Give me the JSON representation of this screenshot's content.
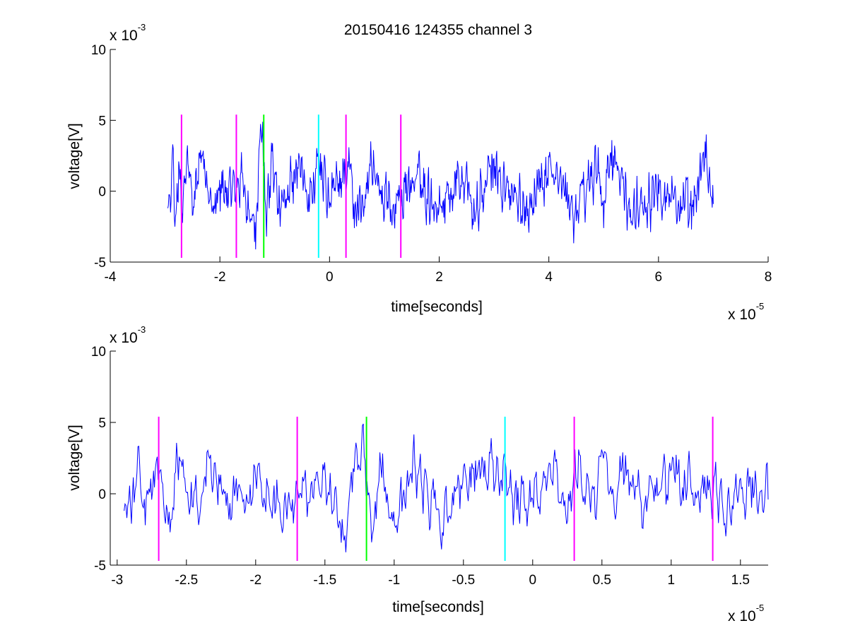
{
  "figure": {
    "title": "20150416 124355 channel 3"
  },
  "chart_data": [
    {
      "type": "line",
      "title": "20150416 124355 channel 3",
      "xlabel": "time[seconds]",
      "ylabel": "voltage[V]",
      "x_multiplier": {
        "base": "x 10",
        "exponent": "-5"
      },
      "y_multiplier": {
        "base": "x 10",
        "exponent": "-3"
      },
      "xlim": [
        -4e-05,
        8e-05
      ],
      "ylim": [
        -0.005,
        0.01
      ],
      "xticks": [
        "-4",
        "-2",
        "0",
        "2",
        "4",
        "6",
        "8"
      ],
      "xtick_values": [
        -4e-05,
        -2e-05,
        0,
        2e-05,
        4e-05,
        6e-05,
        8e-05
      ],
      "yticks": [
        "-5",
        "0",
        "5",
        "10"
      ],
      "ytick_values": [
        -0.005,
        0,
        0.005,
        0.01
      ],
      "grid": false,
      "series": [
        {
          "signal_range": [
            -2.95e-05,
            7e-05
          ],
          "sample_count": 1000,
          "color": "#0000ff",
          "points": [
            [
              -2.95e-05,
              -0.0012
            ],
            [
              -2.9e-05,
              -0.0015
            ],
            [
              -2.86e-05,
              0.0033
            ],
            [
              -2.82e-05,
              -0.0025
            ],
            [
              -2.75e-05,
              0.0021
            ],
            [
              -2.7e-05,
              -0.0028
            ],
            [
              -2.6e-05,
              0.0027
            ],
            [
              -2.5e-05,
              -0.0017
            ],
            [
              -2.35e-05,
              0.0029
            ],
            [
              -2.2e-05,
              -0.0009
            ],
            [
              -2e-05,
              0.0008
            ],
            [
              -1.8e-05,
              -0.0011
            ],
            [
              -1.6e-05,
              0.0013
            ],
            [
              -1.45e-05,
              -0.0022
            ],
            [
              -1.35e-05,
              -0.0041
            ],
            [
              -1.28e-05,
              0.0033
            ],
            [
              -1.22e-05,
              0.0049
            ],
            [
              -1.15e-05,
              -0.0032
            ],
            [
              -1.05e-05,
              0.0028
            ],
            [
              -9e-06,
              -0.0025
            ],
            [
              -6e-06,
              0.0019
            ],
            [
              -3e-06,
              -0.0008
            ],
            [
              -2e-06,
              0.0024
            ],
            [
              0.0,
              -0.0012
            ],
            [
              3.5e-06,
              0.0031
            ],
            [
              4.5e-06,
              -0.0026
            ],
            [
              8e-06,
              0.0029
            ],
            [
              1e-05,
              -0.0018
            ],
            [
              1.6e-05,
              0.0012
            ],
            [
              2e-05,
              -0.0013
            ],
            [
              2.5e-05,
              0.0021
            ],
            [
              2.6e-05,
              -0.0027
            ],
            [
              3e-05,
              0.0023
            ],
            [
              3.5e-05,
              -0.0021
            ],
            [
              4e-05,
              0.0025
            ],
            [
              4.5e-05,
              -0.0021
            ],
            [
              4.9e-05,
              0.0031
            ],
            [
              5e-05,
              -0.0026
            ],
            [
              5.15e-05,
              0.0036
            ],
            [
              5.5e-05,
              -0.0022
            ],
            [
              6e-05,
              0.0012
            ],
            [
              6.6e-05,
              -0.0027
            ],
            [
              6.85e-05,
              0.0035
            ],
            [
              7e-05,
              -0.0009
            ]
          ]
        }
      ],
      "markers": [
        {
          "x": -2.7e-05,
          "color": "#ff00ff",
          "ylim": [
            -0.0047,
            0.0054
          ]
        },
        {
          "x": -1.7e-05,
          "color": "#ff00ff",
          "ylim": [
            -0.0047,
            0.0054
          ]
        },
        {
          "x": -1.2e-05,
          "color": "#00ff00",
          "ylim": [
            -0.0047,
            0.0054
          ]
        },
        {
          "x": -2e-06,
          "color": "#00ffff",
          "ylim": [
            -0.0047,
            0.0054
          ]
        },
        {
          "x": 3e-06,
          "color": "#ff00ff",
          "ylim": [
            -0.0047,
            0.0054
          ]
        },
        {
          "x": 1.3e-05,
          "color": "#ff00ff",
          "ylim": [
            -0.0047,
            0.0054
          ]
        }
      ]
    },
    {
      "type": "line",
      "title": "",
      "xlabel": "time[seconds]",
      "ylabel": "voltage[V]",
      "x_multiplier": {
        "base": "x 10",
        "exponent": "-5"
      },
      "y_multiplier": {
        "base": "x 10",
        "exponent": "-3"
      },
      "xlim": [
        -3.05e-05,
        1.7e-05
      ],
      "ylim": [
        -0.005,
        0.01
      ],
      "xticks": [
        "-3",
        "-2.5",
        "-2",
        "-1.5",
        "-1",
        "-0.5",
        "0",
        "0.5",
        "1",
        "1.5"
      ],
      "xtick_values": [
        -3e-05,
        -2.5e-05,
        -2e-05,
        -1.5e-05,
        -1e-05,
        -5e-06,
        0,
        5e-06,
        1e-05,
        1.5e-05
      ],
      "yticks": [
        "-5",
        "0",
        "5",
        "10"
      ],
      "ytick_values": [
        -0.005,
        0,
        0.005,
        0.01
      ],
      "grid": false,
      "series": [
        {
          "signal_range": [
            -2.95e-05,
            1.7e-05
          ],
          "sample_count": 700,
          "color": "#0000ff",
          "points": [
            [
              -2.95e-05,
              -0.0012
            ],
            [
              -2.9e-05,
              -0.0021
            ],
            [
              -2.85e-05,
              0.0033
            ],
            [
              -2.8e-05,
              -0.0022
            ],
            [
              -2.72e-05,
              0.0023
            ],
            [
              -2.62e-05,
              -0.0027
            ],
            [
              -2.55e-05,
              0.0026
            ],
            [
              -2.4e-05,
              -0.0011
            ],
            [
              -2.35e-05,
              0.0029
            ],
            [
              -2.2e-05,
              -0.0009
            ],
            [
              -2e-05,
              0.0011
            ],
            [
              -1.75e-05,
              -0.0009
            ],
            [
              -1.5e-05,
              0.0022
            ],
            [
              -1.4e-05,
              -0.0024
            ],
            [
              -1.35e-05,
              -0.0041
            ],
            [
              -1.28e-05,
              0.0029
            ],
            [
              -1.22e-05,
              0.0049
            ],
            [
              -1.16e-05,
              -0.0034
            ],
            [
              -1.1e-05,
              0.0029
            ],
            [
              -1e-05,
              -0.0022
            ],
            [
              -8.5e-06,
              0.0021
            ],
            [
              -6.5e-06,
              -0.0027
            ],
            [
              -4.5e-06,
              0.0019
            ],
            [
              -2e-06,
              0.0024
            ],
            [
              -1e-06,
              -0.0013
            ],
            [
              1.5e-06,
              0.0024
            ],
            [
              2.5e-06,
              -0.0019
            ],
            [
              3.3e-06,
              0.0031
            ],
            [
              4.5e-06,
              -0.0016
            ],
            [
              5e-06,
              0.0031
            ],
            [
              6e-06,
              -0.0018
            ],
            [
              6.5e-06,
              0.0029
            ],
            [
              8e-06,
              -0.0011
            ],
            [
              1.05e-05,
              0.0015
            ],
            [
              1.3e-05,
              -0.0005
            ],
            [
              1.4e-05,
              -0.0021
            ],
            [
              1.5e-05,
              0.0011
            ],
            [
              1.7e-05,
              -0.0004
            ]
          ]
        }
      ],
      "markers": [
        {
          "x": -2.7e-05,
          "color": "#ff00ff",
          "ylim": [
            -0.0047,
            0.0054
          ]
        },
        {
          "x": -1.7e-05,
          "color": "#ff00ff",
          "ylim": [
            -0.0047,
            0.0054
          ]
        },
        {
          "x": -1.2e-05,
          "color": "#00ff00",
          "ylim": [
            -0.0047,
            0.0054
          ]
        },
        {
          "x": -2e-06,
          "color": "#00ffff",
          "ylim": [
            -0.0047,
            0.0054
          ]
        },
        {
          "x": 3e-06,
          "color": "#ff00ff",
          "ylim": [
            -0.0047,
            0.0054
          ]
        },
        {
          "x": 1.3e-05,
          "color": "#ff00ff",
          "ylim": [
            -0.0047,
            0.0054
          ]
        }
      ]
    }
  ]
}
